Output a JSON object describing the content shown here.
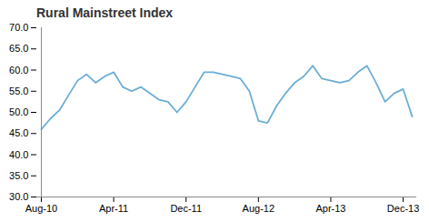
{
  "chart_data": {
    "type": "line",
    "title": "Rural Mainstreet Index",
    "categories": [
      "Aug-10",
      null,
      null,
      null,
      null,
      null,
      null,
      null,
      "Apr-11",
      null,
      null,
      null,
      null,
      null,
      null,
      null,
      "Dec-11",
      null,
      null,
      null,
      null,
      null,
      null,
      null,
      "Aug-12",
      null,
      null,
      null,
      null,
      null,
      null,
      null,
      "Apr-13",
      null,
      null,
      null,
      null,
      null,
      null,
      null,
      "Dec-13",
      null
    ],
    "values": [
      46.0,
      48.5,
      50.5,
      54.0,
      57.5,
      59.0,
      57.0,
      58.5,
      59.5,
      56.0,
      55.0,
      56.0,
      54.5,
      53.0,
      52.5,
      50.0,
      52.5,
      56.0,
      59.5,
      59.5,
      59.0,
      58.5,
      58.0,
      55.0,
      48.0,
      47.5,
      51.5,
      54.5,
      57.0,
      58.5,
      61.0,
      58.0,
      57.5,
      57.0,
      57.5,
      59.5,
      61.0,
      57.0,
      52.5,
      54.5,
      55.5,
      49.0
    ],
    "color": "#6baed6",
    "ylim": [
      30.0,
      70.0
    ],
    "yticks": [
      {
        "value": 30.0,
        "label": "30.0"
      },
      {
        "value": 35.0,
        "label": "35.0"
      },
      {
        "value": 40.0,
        "label": "40.0"
      },
      {
        "value": 45.0,
        "label": "45.0"
      },
      {
        "value": 50.0,
        "label": "50.0"
      },
      {
        "value": 55.0,
        "label": "55.0"
      },
      {
        "value": 60.0,
        "label": "60.0"
      },
      {
        "value": 65.0,
        "label": "65.0"
      },
      {
        "value": 70.0,
        "label": "70.0"
      }
    ],
    "grid": false
  }
}
